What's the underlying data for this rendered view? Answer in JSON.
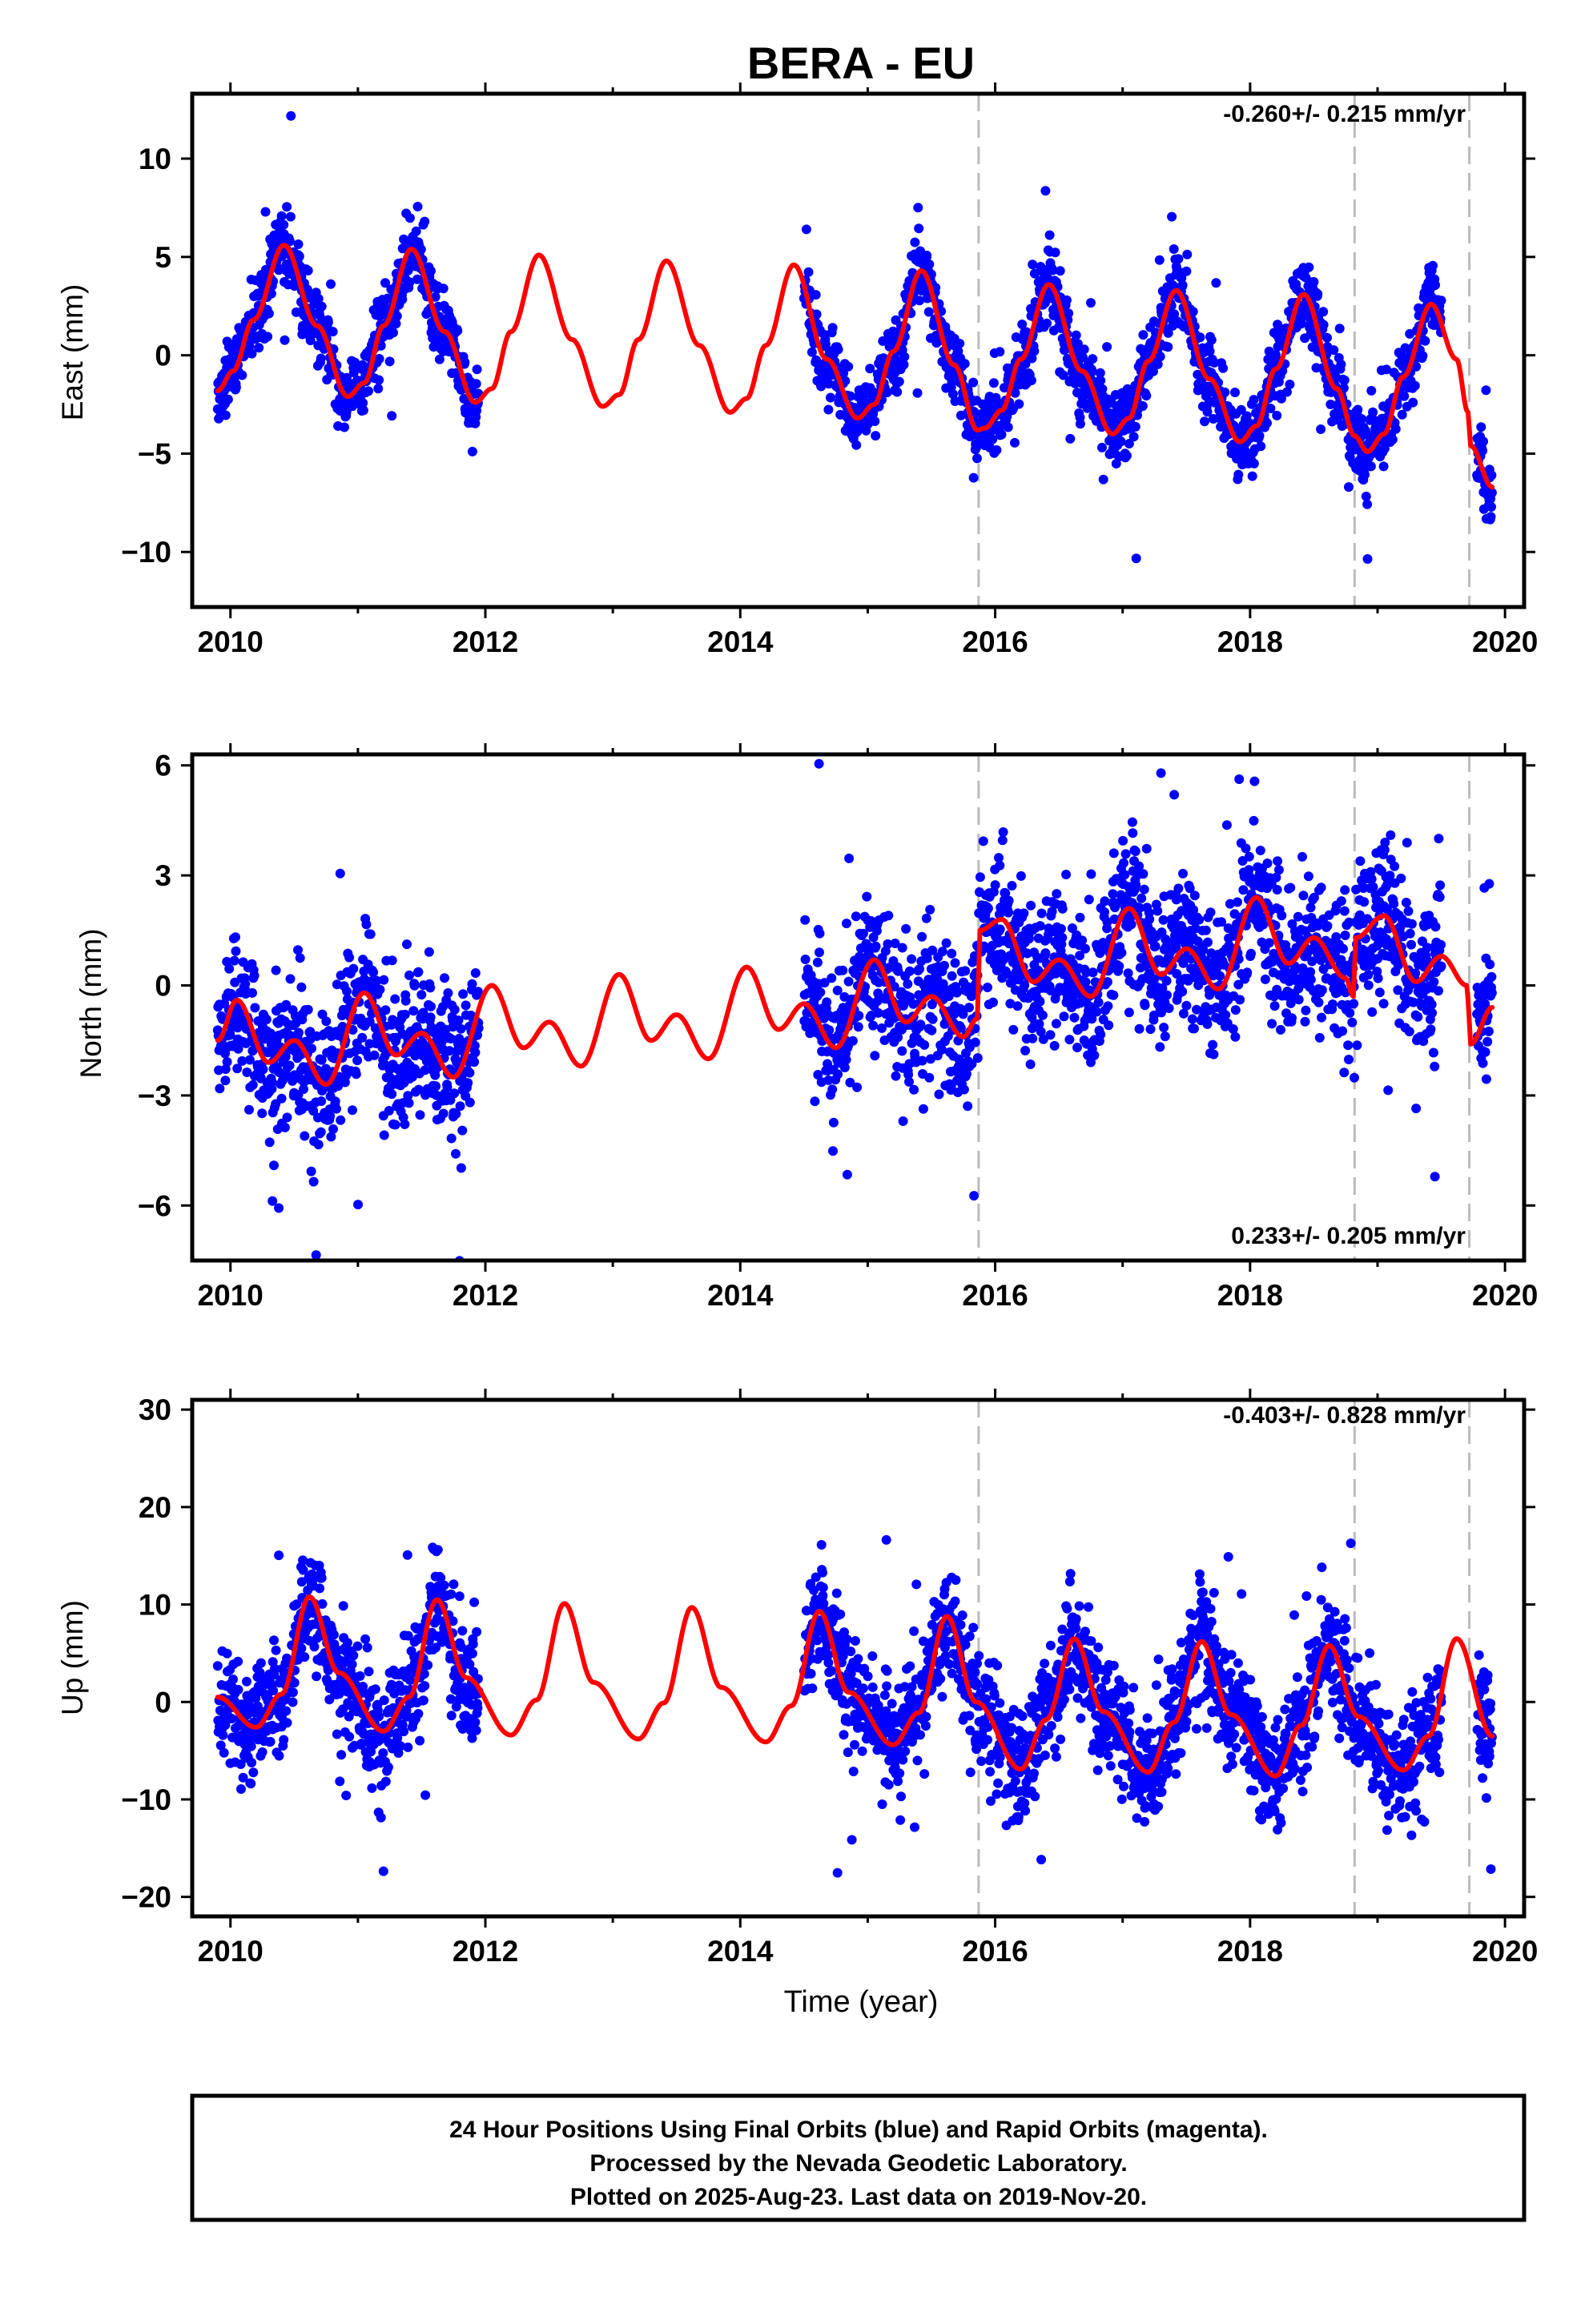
{
  "title": "BERA - EU",
  "xlabel": "Time (year)",
  "footer": {
    "line1": "24 Hour Positions Using Final Orbits (blue) and Rapid Orbits (magenta).",
    "line2": "Processed by the Nevada Geodetic Laboratory.",
    "line3": "Plotted on 2025-Aug-23. Last data on 2019-Nov-20."
  },
  "colors": {
    "data": "#0000ff",
    "model": "#ff0000",
    "steps": "#bbbbbb"
  },
  "chart_data": [
    {
      "type": "scatter",
      "ylabel": "East (mm)",
      "rate_label": "-0.260+/- 0.215 mm/yr",
      "rate_position": "top-right",
      "xlim": [
        2009.7,
        2020.15
      ],
      "ylim": [
        -12.8,
        13.3
      ],
      "x_ticks": [
        2010,
        2012,
        2014,
        2016,
        2018,
        2020
      ],
      "x_tick_labels": [
        "2010",
        "2012",
        "2014",
        "2016",
        "2018",
        "2020"
      ],
      "y_ticks": [
        -10,
        -5,
        0,
        5,
        10
      ],
      "y_tick_labels": [
        "−10",
        "−5",
        "0",
        "5",
        "10"
      ],
      "step_epochs": [
        2015.87,
        2018.82,
        2019.72
      ],
      "model_knots": {
        "x": [
          2009.9,
          2010.02,
          2010.18,
          2010.42,
          2010.68,
          2010.92,
          2011.05,
          2011.2,
          2011.42,
          2011.68,
          2011.92,
          2012.05,
          2012.2,
          2012.42,
          2012.68,
          2012.92,
          2013.05,
          2013.2,
          2013.42,
          2013.68,
          2013.92,
          2014.05,
          2014.2,
          2014.42,
          2014.68,
          2014.92,
          2015.05,
          2015.2,
          2015.42,
          2015.68,
          2015.86,
          2015.92,
          2016.05,
          2016.2,
          2016.42,
          2016.68,
          2016.92,
          2017.05,
          2017.2,
          2017.42,
          2017.68,
          2017.92,
          2018.05,
          2018.2,
          2018.42,
          2018.68,
          2018.82,
          2018.92,
          2019.05,
          2019.2,
          2019.42,
          2019.62,
          2019.71,
          2019.73,
          2019.9
        ],
        "y": [
          -1.8,
          -0.8,
          1.8,
          5.6,
          1.5,
          -2.1,
          -1.4,
          1.5,
          5.4,
          1.2,
          -2.4,
          -1.7,
          1.2,
          5.1,
          0.8,
          -2.6,
          -2.0,
          0.8,
          4.8,
          0.5,
          -2.9,
          -2.2,
          0.5,
          4.6,
          -0.2,
          -3.2,
          -2.5,
          0.2,
          4.3,
          -0.5,
          -3.8,
          -3.7,
          -2.8,
          -0.2,
          3.6,
          -0.8,
          -4.0,
          -3.2,
          -0.3,
          3.3,
          -1.2,
          -4.4,
          -3.6,
          -0.7,
          3.1,
          -1.7,
          -4.1,
          -4.9,
          -4.0,
          -1.1,
          2.6,
          -0.2,
          -2.9,
          -4.6,
          -6.7
        ]
      },
      "data_segments": [
        [
          2009.9,
          2011.95
        ],
        [
          2014.5,
          2019.5
        ],
        [
          2019.78,
          2019.9
        ]
      ],
      "data_noise_mm": 1.2
    },
    {
      "type": "scatter",
      "ylabel": "North (mm)",
      "rate_label": "0.233+/- 0.205 mm/yr",
      "rate_position": "bottom-right",
      "xlim": [
        2009.7,
        2020.15
      ],
      "ylim": [
        -7.5,
        6.3
      ],
      "x_ticks": [
        2010,
        2012,
        2014,
        2016,
        2018,
        2020
      ],
      "x_tick_labels": [
        "2010",
        "2012",
        "2014",
        "2016",
        "2018",
        "2020"
      ],
      "y_ticks": [
        -6,
        -3,
        0,
        3,
        6
      ],
      "y_tick_labels": [
        "−6",
        "−3",
        "0",
        "3",
        "6"
      ],
      "step_epochs": [
        2015.87,
        2018.82,
        2019.72
      ],
      "model_knots": {
        "x": [
          2009.9,
          2010.05,
          2010.3,
          2010.5,
          2010.75,
          2011.05,
          2011.3,
          2011.5,
          2011.75,
          2012.05,
          2012.3,
          2012.5,
          2012.75,
          2013.05,
          2013.3,
          2013.5,
          2013.75,
          2014.05,
          2014.3,
          2014.5,
          2014.75,
          2015.05,
          2015.3,
          2015.5,
          2015.75,
          2015.86,
          2015.88,
          2016.05,
          2016.3,
          2016.5,
          2016.75,
          2017.05,
          2017.3,
          2017.5,
          2017.75,
          2018.05,
          2018.3,
          2018.5,
          2018.75,
          2018.81,
          2018.83,
          2019.05,
          2019.3,
          2019.5,
          2019.7,
          2019.71,
          2019.73,
          2019.9
        ],
        "y": [
          -1.5,
          -0.4,
          -2.1,
          -1.5,
          -2.7,
          -0.2,
          -1.9,
          -1.3,
          -2.5,
          0.0,
          -1.7,
          -1.0,
          -2.2,
          0.3,
          -1.5,
          -0.8,
          -2.0,
          0.5,
          -1.2,
          -0.5,
          -1.7,
          0.7,
          -1.0,
          -0.3,
          -1.4,
          -0.9,
          1.5,
          1.8,
          0.1,
          0.7,
          -0.3,
          2.1,
          0.3,
          1.0,
          -0.1,
          2.4,
          0.6,
          1.3,
          0.2,
          -0.3,
          1.3,
          1.9,
          0.1,
          0.8,
          0.0,
          -0.4,
          -1.6,
          -0.6
        ]
      },
      "data_segments": [
        [
          2009.9,
          2011.95
        ],
        [
          2014.5,
          2019.5
        ],
        [
          2019.78,
          2019.9
        ]
      ],
      "data_noise_mm": 1.3
    },
    {
      "type": "scatter",
      "ylabel": "Up (mm)",
      "rate_label": "-0.403+/- 0.828 mm/yr",
      "rate_position": "top-right",
      "xlim": [
        2009.7,
        2020.15
      ],
      "ylim": [
        -22,
        31
      ],
      "x_ticks": [
        2010,
        2012,
        2014,
        2016,
        2018,
        2020
      ],
      "x_tick_labels": [
        "2010",
        "2012",
        "2014",
        "2016",
        "2018",
        "2020"
      ],
      "y_ticks": [
        -20,
        -10,
        0,
        10,
        20,
        30
      ],
      "y_tick_labels": [
        "−20",
        "−10",
        "0",
        "10",
        "20",
        "30"
      ],
      "step_epochs": [
        2015.87,
        2018.82,
        2019.72
      ],
      "model_knots": {
        "x": [
          2009.9,
          2010.2,
          2010.4,
          2010.62,
          2010.85,
          2011.2,
          2011.4,
          2011.62,
          2011.85,
          2012.2,
          2012.4,
          2012.62,
          2012.85,
          2013.2,
          2013.4,
          2013.62,
          2013.85,
          2014.2,
          2014.4,
          2014.62,
          2014.85,
          2015.2,
          2015.4,
          2015.62,
          2015.85,
          2016.2,
          2016.4,
          2016.62,
          2016.85,
          2017.2,
          2017.4,
          2017.62,
          2017.85,
          2018.2,
          2018.4,
          2018.62,
          2018.85,
          2019.2,
          2019.4,
          2019.62,
          2019.9
        ],
        "y": [
          0.5,
          -2.6,
          0.8,
          10.8,
          3.0,
          -3.0,
          0.5,
          10.5,
          2.5,
          -3.4,
          0.2,
          10.1,
          2.0,
          -3.8,
          -0.1,
          9.7,
          1.5,
          -4.1,
          -0.4,
          9.3,
          1.0,
          -4.4,
          -1.1,
          8.8,
          0.0,
          -6.9,
          -1.8,
          6.5,
          -1.0,
          -7.2,
          -2.1,
          6.2,
          -1.3,
          -7.6,
          -2.4,
          5.8,
          -1.5,
          -7.0,
          -3.5,
          6.5,
          -3.5
        ]
      },
      "data_segments": [
        [
          2009.9,
          2011.95
        ],
        [
          2014.5,
          2019.5
        ],
        [
          2019.78,
          2019.9
        ]
      ],
      "data_noise_mm": 3.8
    }
  ]
}
